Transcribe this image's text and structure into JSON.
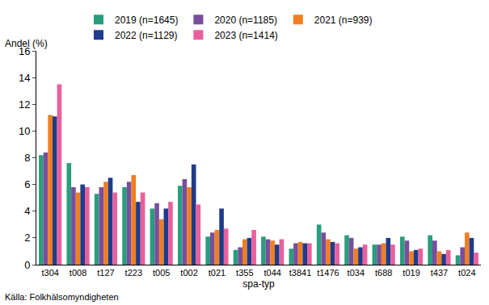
{
  "chart_data": {
    "type": "bar",
    "ylabel": "Andel (%)",
    "xlabel": "spa-typ",
    "annotations": [
      "Källa: Folkhälsomyndigheten"
    ],
    "categories": [
      "t304",
      "t008",
      "t127",
      "t223",
      "t005",
      "t002",
      "t021",
      "t355",
      "t044",
      "t3841",
      "t1476",
      "t034",
      "t688",
      "t019",
      "t437",
      "t024"
    ],
    "series": [
      {
        "name": "2019 (n=1645)",
        "color": "#2a9d7c",
        "values": [
          8.2,
          7.6,
          5.3,
          5.8,
          4.2,
          5.9,
          2.1,
          1.1,
          2.1,
          1.2,
          3.0,
          2.2,
          1.5,
          2.1,
          2.2,
          0.7
        ]
      },
      {
        "name": "2020 (n=1185)",
        "color": "#7a4e9c",
        "values": [
          8.4,
          5.8,
          5.8,
          6.2,
          4.6,
          6.4,
          2.4,
          1.3,
          1.9,
          1.6,
          2.4,
          2.0,
          1.5,
          1.8,
          1.8,
          1.3
        ]
      },
      {
        "name": "2021 (n=939)",
        "color": "#f07e22",
        "values": [
          11.2,
          5.4,
          6.2,
          6.7,
          3.4,
          5.8,
          2.6,
          1.9,
          1.8,
          1.7,
          1.9,
          1.2,
          1.6,
          1.0,
          1.0,
          2.4
        ]
      },
      {
        "name": "2022 (n=1129)",
        "color": "#1f3c8a",
        "values": [
          11.1,
          6.0,
          6.5,
          4.7,
          4.2,
          7.5,
          4.2,
          2.0,
          1.5,
          1.6,
          1.7,
          1.3,
          2.0,
          1.1,
          0.8,
          2.0
        ]
      },
      {
        "name": "2023 (n=1414)",
        "color": "#e9609c",
        "values": [
          13.5,
          5.8,
          5.4,
          5.4,
          4.7,
          4.5,
          2.7,
          2.6,
          1.9,
          1.6,
          1.6,
          1.5,
          1.5,
          1.2,
          1.1,
          0.9
        ]
      }
    ],
    "ylim": [
      0,
      16
    ],
    "yticks": [
      0,
      2,
      4,
      6,
      8,
      10,
      12,
      14,
      16
    ],
    "grid": false,
    "legend": "top"
  }
}
